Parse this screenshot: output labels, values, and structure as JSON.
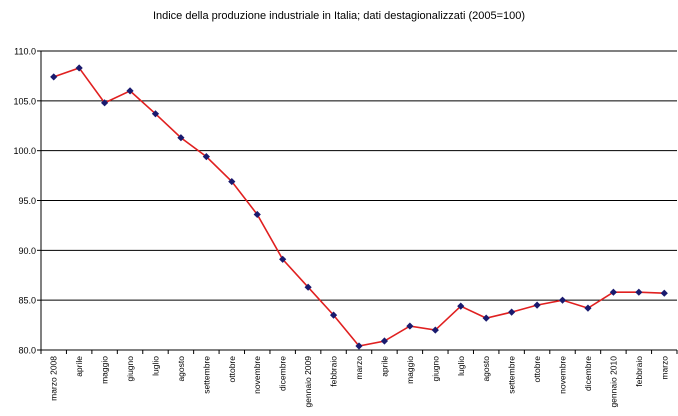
{
  "chart_data": {
    "type": "line",
    "title": "Indice della produzione industriale in Italia; dati destagionalizzati (2005=100)",
    "xlabel": "",
    "ylabel": "",
    "ylim": [
      80,
      110
    ],
    "yticks": [
      "80.0",
      "85.0",
      "90.0",
      "95.0",
      "100.0",
      "105.0",
      "110.0"
    ],
    "grid": true,
    "legend": "none",
    "line_color": "#e02020",
    "marker_color": "#1a1a6e",
    "categories": [
      "marzo 2008",
      "aprile",
      "maggio",
      "giugno",
      "luglio",
      "agosto",
      "settembre",
      "ottobre",
      "novembre",
      "dicembre",
      "gennaio 2009",
      "febbraio",
      "marzo",
      "aprile",
      "maggio",
      "giugno",
      "luglio",
      "agosto",
      "settembre",
      "ottobre",
      "novembre",
      "dicembre",
      "gennaio 2010",
      "febbraio",
      "marzo"
    ],
    "values": [
      107.4,
      108.3,
      104.8,
      106.0,
      103.7,
      101.3,
      99.4,
      96.9,
      93.6,
      89.1,
      86.3,
      83.5,
      80.4,
      80.9,
      82.4,
      82.0,
      84.4,
      83.2,
      83.8,
      84.5,
      85.0,
      84.2,
      85.8,
      85.8,
      85.7
    ]
  }
}
